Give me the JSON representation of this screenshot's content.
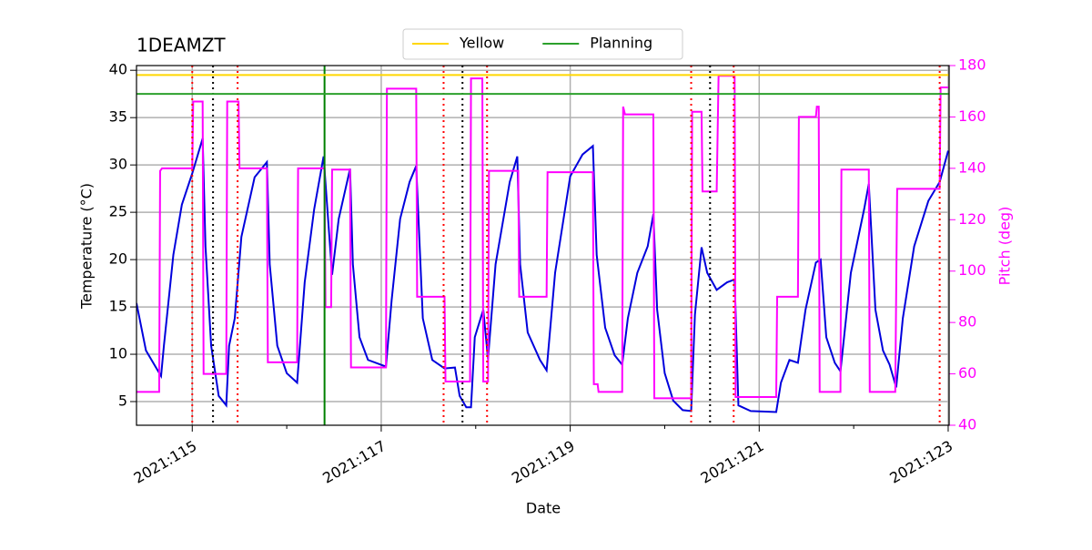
{
  "chart_data": {
    "type": "line",
    "title": "1DEAMZT",
    "xlabel": "Date",
    "ylabel": "Temperature (°C)",
    "y2label": "Pitch (deg)",
    "y2color": "#ff00ff",
    "xlim": [
      114.41,
      123.01
    ],
    "xticks": [
      {
        "value": 115,
        "label": "2021:115"
      },
      {
        "value": 117,
        "label": "2021:117"
      },
      {
        "value": 119,
        "label": "2021:119"
      },
      {
        "value": 121,
        "label": "2021:121"
      },
      {
        "value": 123,
        "label": "2021:123"
      }
    ],
    "xminorticks": [
      116,
      118,
      120,
      122
    ],
    "ylim": [
      2.5,
      40.5
    ],
    "yticks": [
      5,
      10,
      15,
      20,
      25,
      30,
      35,
      40
    ],
    "y2lim": [
      40,
      180
    ],
    "y2ticks": [
      40,
      60,
      80,
      100,
      120,
      140,
      160,
      180
    ],
    "grid": true,
    "legend": "upper center",
    "hlines": [
      {
        "name": "Yellow",
        "color": "#ffd700",
        "value": 39.5
      },
      {
        "name": "Planning",
        "color": "#2ca02c",
        "value": 37.5
      }
    ],
    "vlines": [
      {
        "color": "#ff0000",
        "dash": "dotted",
        "x": [
          115.0,
          115.48,
          117.66,
          118.12,
          120.28,
          120.73,
          122.91
        ]
      },
      {
        "color": "#000000",
        "dash": "dotted",
        "x": [
          115.22,
          117.86,
          120.48
        ]
      },
      {
        "color": "#008000",
        "dash": "solid",
        "x": [
          116.4
        ]
      }
    ],
    "series": [
      {
        "color": "#0000dd",
        "x": [
          114.41,
          114.51,
          114.61,
          114.67,
          114.7,
          114.8,
          114.89,
          115.0,
          115.11,
          115.14,
          115.2,
          115.28,
          115.36,
          115.39,
          115.45,
          115.52,
          115.66,
          115.79,
          115.82,
          115.9,
          116.0,
          116.11,
          116.19,
          116.29,
          116.39,
          116.48,
          116.55,
          116.67,
          116.7,
          116.77,
          116.86,
          117.05,
          117.11,
          117.2,
          117.3,
          117.37,
          117.44,
          117.54,
          117.67,
          117.78,
          117.83,
          117.9,
          117.95,
          117.99,
          118.08,
          118.13,
          118.21,
          118.36,
          118.44,
          118.47,
          118.55,
          118.68,
          118.75,
          118.84,
          119.0,
          119.13,
          119.24,
          119.28,
          119.37,
          119.47,
          119.55,
          119.61,
          119.71,
          119.82,
          119.88,
          119.92,
          120.0,
          120.09,
          120.19,
          120.28,
          120.32,
          120.39,
          120.45,
          120.55,
          120.66,
          120.74,
          120.78,
          120.91,
          121.18,
          121.23,
          121.32,
          121.41,
          121.49,
          121.6,
          121.65,
          121.71,
          121.8,
          121.86,
          121.97,
          122.11,
          122.16,
          122.23,
          122.31,
          122.38,
          122.45,
          122.52,
          122.64,
          122.79,
          122.91,
          123.0
        ],
        "values": [
          15.4,
          10.4,
          8.7,
          7.7,
          10.9,
          20.5,
          25.8,
          29.1,
          32.8,
          21.4,
          10.9,
          5.6,
          4.6,
          10.9,
          13.8,
          22.4,
          28.7,
          30.3,
          19.5,
          10.9,
          8.0,
          7.0,
          17.6,
          25.3,
          30.9,
          18.4,
          24.3,
          29.6,
          19.5,
          11.8,
          9.4,
          8.7,
          15.7,
          24.3,
          28.2,
          29.9,
          13.8,
          9.4,
          8.5,
          8.6,
          5.6,
          4.4,
          4.4,
          11.8,
          14.7,
          9.5,
          19.5,
          28.2,
          30.9,
          19.5,
          12.3,
          9.4,
          8.3,
          18.6,
          28.8,
          31.1,
          32.0,
          20.5,
          12.8,
          9.9,
          8.9,
          13.8,
          18.6,
          21.4,
          24.8,
          14.7,
          8.0,
          5.1,
          4.1,
          4.0,
          14.2,
          21.3,
          18.6,
          16.8,
          17.6,
          17.9,
          4.6,
          4.0,
          3.9,
          7.0,
          9.4,
          9.1,
          14.7,
          19.7,
          20.0,
          11.8,
          9.1,
          8.2,
          18.6,
          25.3,
          28.0,
          14.7,
          10.4,
          8.9,
          6.5,
          13.8,
          21.4,
          26.2,
          28.2,
          31.5
        ]
      },
      {
        "color": "#ff00ff",
        "axis": "y2",
        "x": [
          114.41,
          114.65,
          114.66,
          114.68,
          115.0,
          115.01,
          115.11,
          115.12,
          115.36,
          115.37,
          115.49,
          115.5,
          115.79,
          115.8,
          116.11,
          116.12,
          116.4,
          116.41,
          116.47,
          116.48,
          116.67,
          116.68,
          117.05,
          117.06,
          117.37,
          117.38,
          117.67,
          117.68,
          117.94,
          117.95,
          118.07,
          118.08,
          118.13,
          118.14,
          118.45,
          118.46,
          118.75,
          118.76,
          119.24,
          119.25,
          119.29,
          119.3,
          119.55,
          119.56,
          119.58,
          119.88,
          119.89,
          120.28,
          120.29,
          120.39,
          120.4,
          120.55,
          120.57,
          120.74,
          120.75,
          121.18,
          121.19,
          121.41,
          121.42,
          121.6,
          121.61,
          121.63,
          121.64,
          121.86,
          121.87,
          122.16,
          122.17,
          122.44,
          122.45,
          122.46,
          122.91,
          122.92,
          123.0
        ],
        "values": [
          53,
          53,
          139,
          140,
          140,
          166,
          166,
          60,
          60,
          166,
          166,
          140,
          140,
          64.5,
          64.5,
          140,
          140,
          86,
          86,
          139.5,
          139.5,
          62.5,
          62.5,
          171,
          171,
          90,
          90,
          57,
          57,
          175,
          175,
          57,
          57,
          139,
          139,
          90,
          90,
          138.5,
          138.5,
          56,
          56,
          53,
          53,
          164,
          161,
          161,
          50.5,
          50.5,
          162,
          162,
          131,
          131,
          176,
          176,
          51,
          51,
          90,
          90,
          160,
          160,
          164,
          164,
          53,
          53,
          139.5,
          139.5,
          53,
          53,
          93,
          132,
          132,
          171.5,
          171.5
        ]
      }
    ]
  }
}
